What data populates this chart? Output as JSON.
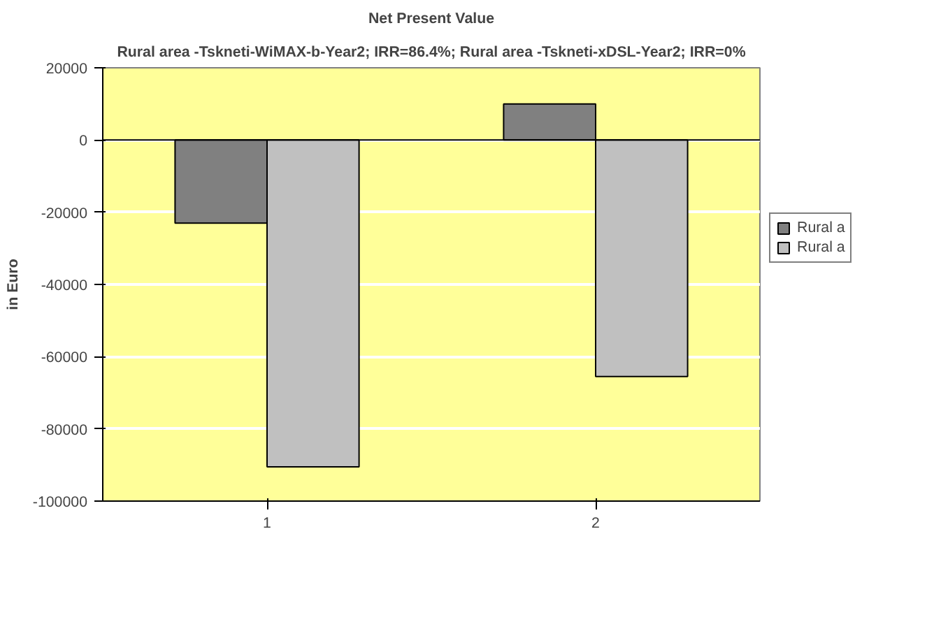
{
  "chart_data": {
    "type": "bar",
    "title": "Net Present Value",
    "subtitle": "Rural area -Tskneti-WiMAX-b-Year2; IRR=86.4%; Rural area -Tskneti-xDSL-Year2; IRR=0%",
    "ylabel": "in Euro",
    "categories": [
      "1",
      "2"
    ],
    "series": [
      {
        "name": "Rural a",
        "color": "#808080",
        "values": [
          -23000,
          10000
        ]
      },
      {
        "name": "Rural a",
        "color": "#c0c0c0",
        "values": [
          -90500,
          -65500
        ]
      }
    ],
    "ylim": [
      -100000,
      20000
    ],
    "yticks": [
      -100000,
      -80000,
      -60000,
      -40000,
      -20000,
      0,
      20000
    ],
    "grid": "y",
    "legend": "right"
  }
}
